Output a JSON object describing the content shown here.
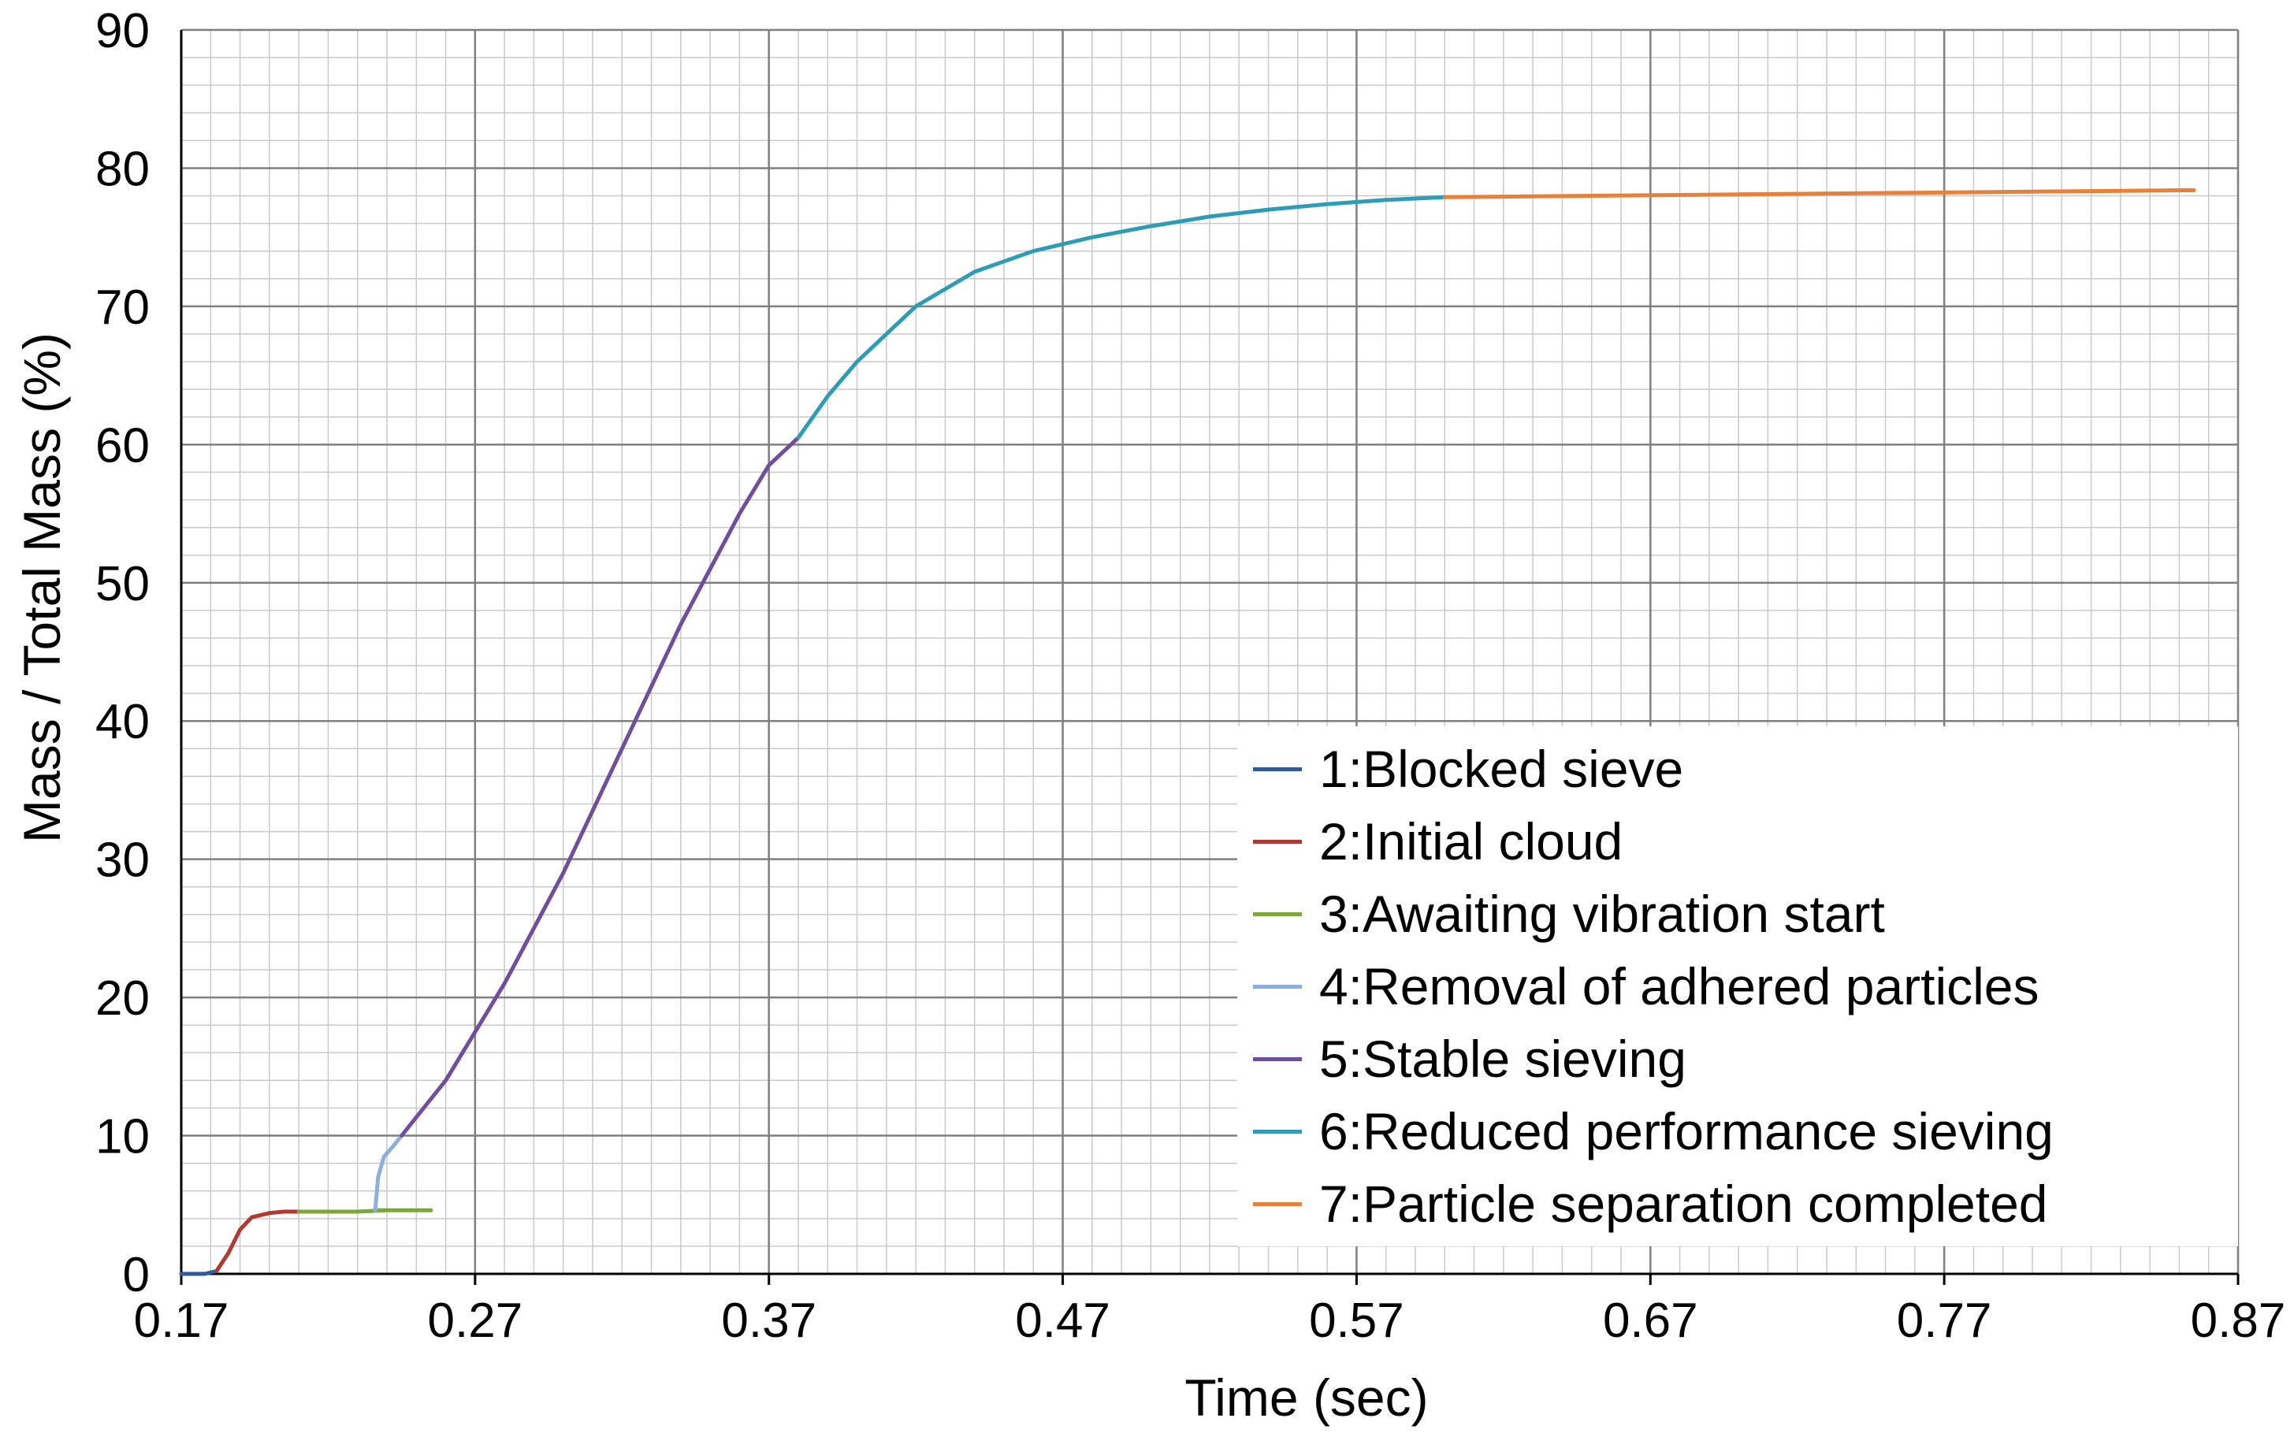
{
  "chart_data": {
    "type": "line",
    "title": "",
    "xlabel": "Time (sec)",
    "ylabel": "Mass / Total Mass (%)",
    "xlim": [
      0.17,
      0.87
    ],
    "ylim": [
      0,
      90
    ],
    "xticks": [
      0.17,
      0.27,
      0.37,
      0.47,
      0.57,
      0.67,
      0.77,
      0.87
    ],
    "xtick_labels": [
      "0.17",
      "0.27",
      "0.37",
      "0.47",
      "0.57",
      "0.67",
      "0.77",
      "0.87"
    ],
    "yticks": [
      0,
      10,
      20,
      30,
      40,
      50,
      60,
      70,
      80,
      90
    ],
    "ytick_labels": [
      "0",
      "10",
      "20",
      "30",
      "40",
      "50",
      "60",
      "70",
      "80",
      "90"
    ],
    "grid": true,
    "legend_position": "bottom-right",
    "series": [
      {
        "name": "1:Blocked sieve",
        "color": "#2E5A9C",
        "x": [
          0.17,
          0.178,
          0.182
        ],
        "y": [
          0,
          0,
          0.2
        ]
      },
      {
        "name": "2:Initial cloud",
        "color": "#B03A32",
        "x": [
          0.182,
          0.186,
          0.19,
          0.194,
          0.2,
          0.205,
          0.21
        ],
        "y": [
          0.2,
          1.5,
          3.2,
          4.1,
          4.4,
          4.5,
          4.5
        ]
      },
      {
        "name": "3:Awaiting vibration start",
        "color": "#7CA73B",
        "x": [
          0.21,
          0.22,
          0.23,
          0.24,
          0.25,
          0.255,
          0.236
        ],
        "y": [
          4.5,
          4.5,
          4.5,
          4.6,
          4.6,
          4.6,
          4.6
        ]
      },
      {
        "name": "4:Removal of adhered particles",
        "color": "#8EAFDB",
        "x": [
          0.236,
          0.237,
          0.239,
          0.242,
          0.245
        ],
        "y": [
          4.6,
          7.0,
          8.5,
          9.2,
          10.0
        ]
      },
      {
        "name": "5:Stable sieving",
        "color": "#6F4E9E",
        "x": [
          0.245,
          0.26,
          0.28,
          0.3,
          0.32,
          0.34,
          0.36,
          0.37,
          0.38
        ],
        "y": [
          10.0,
          14.0,
          21.0,
          29.0,
          38.0,
          47.0,
          55.0,
          58.5,
          60.5
        ]
      },
      {
        "name": "6:Reduced performance sieving",
        "color": "#2E9CB5",
        "x": [
          0.38,
          0.39,
          0.4,
          0.42,
          0.44,
          0.46,
          0.48,
          0.5,
          0.52,
          0.54,
          0.56,
          0.58,
          0.6
        ],
        "y": [
          60.5,
          63.5,
          66.0,
          70.0,
          72.5,
          74.0,
          75.0,
          75.8,
          76.5,
          77.0,
          77.4,
          77.7,
          77.9
        ]
      },
      {
        "name": "7:Particle separation completed",
        "color": "#E8803A",
        "x": [
          0.6,
          0.65,
          0.7,
          0.75,
          0.8,
          0.85,
          0.855
        ],
        "y": [
          77.9,
          78.0,
          78.1,
          78.2,
          78.3,
          78.4,
          78.4
        ]
      }
    ]
  }
}
